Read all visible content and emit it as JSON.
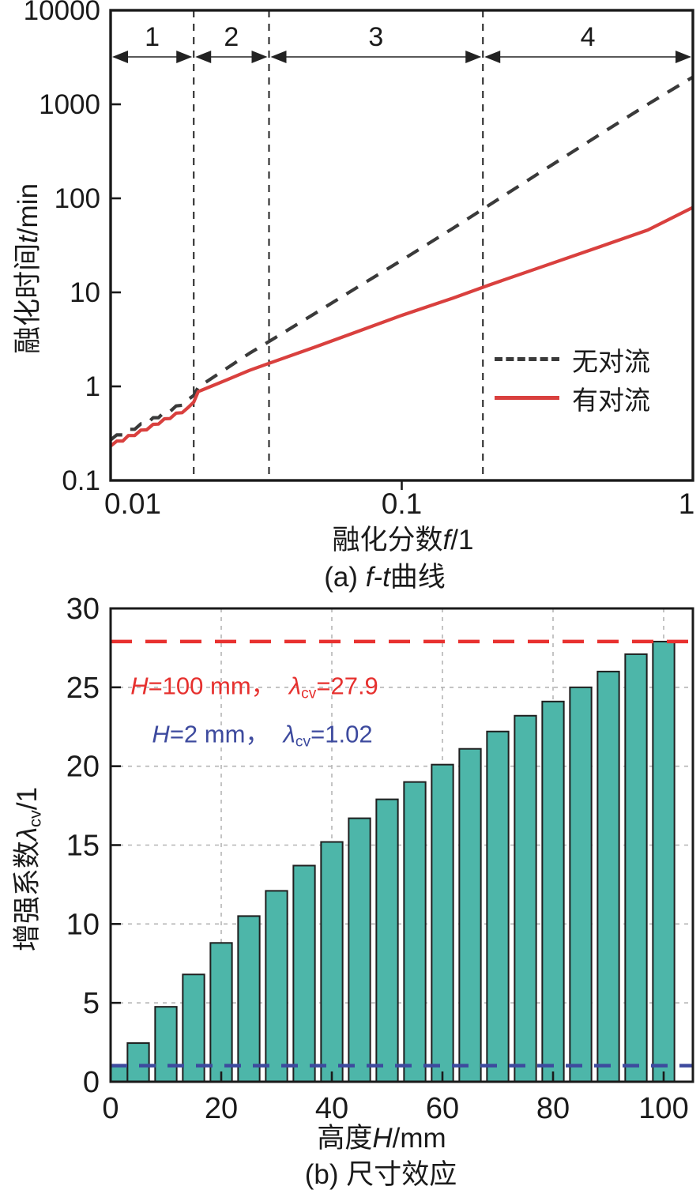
{
  "figure": {
    "panel_a": {
      "ylabel": {
        "cjk": "融化时间",
        "var": "t",
        "unit": "/min"
      },
      "xlabel": {
        "cjk": "融化分数",
        "var": "f",
        "unit": "/1"
      },
      "caption": {
        "prefix": "(a) ",
        "var": "f-t",
        "suffix": "曲线"
      },
      "legend": [
        {
          "key": "no-convection",
          "label": "无对流",
          "style": "dashed",
          "color": "#3a3a3a"
        },
        {
          "key": "with-convection",
          "label": "有对流",
          "style": "solid",
          "color": "#d9403e"
        }
      ]
    },
    "panel_b": {
      "ylabel": {
        "cjk": "增强系数",
        "var": "λ",
        "sub": "cv",
        "unit": "/1"
      },
      "xlabel": {
        "cjk": "高度",
        "var": "H",
        "unit": "/mm"
      },
      "caption": {
        "prefix": "(b) ",
        "suffix": "尺寸效应"
      },
      "annotations": [
        {
          "key": "h100",
          "color": "#e6302e",
          "var1": "H",
          "mid": "=100 mm，  ",
          "var2": "λ",
          "sub": "cv",
          "tail": "=27.9"
        },
        {
          "key": "h2",
          "color": "#3d4a9e",
          "var1": "H",
          "mid": "=2 mm，  ",
          "var2": "λ",
          "sub": "cv",
          "tail": "=1.02"
        }
      ]
    }
  },
  "chart_data": [
    {
      "type": "line",
      "title": "(a) f-t曲线",
      "xlabel": "融化分数f/1",
      "ylabel": "融化时间t/min",
      "xscale": "log",
      "yscale": "log",
      "xlim": [
        0.01,
        1
      ],
      "ylim": [
        0.1,
        10000
      ],
      "xticks": [
        "0.01",
        "0.1",
        "1"
      ],
      "yticks": [
        "0.1",
        "1",
        "10",
        "100",
        "1000",
        "10000"
      ],
      "grid": false,
      "legend_position": "lower right",
      "region_dividers": [
        0.0193,
        0.035,
        0.19
      ],
      "regions": [
        {
          "label": "1",
          "from": 0.01,
          "to": 0.0193
        },
        {
          "label": "2",
          "from": 0.0193,
          "to": 0.035
        },
        {
          "label": "3",
          "from": 0.035,
          "to": 0.19
        },
        {
          "label": "4",
          "from": 0.19,
          "to": 1.0
        }
      ],
      "series": [
        {
          "key": "no-convection",
          "name": "无对流",
          "color": "#3a3a3a",
          "style": "dashed",
          "points": [
            [
              0.01,
              0.27
            ],
            [
              0.0105,
              0.305
            ],
            [
              0.011,
              0.305
            ],
            [
              0.0115,
              0.35
            ],
            [
              0.0121,
              0.35
            ],
            [
              0.0127,
              0.4
            ],
            [
              0.0133,
              0.4
            ],
            [
              0.014,
              0.465
            ],
            [
              0.0146,
              0.465
            ],
            [
              0.0153,
              0.535
            ],
            [
              0.016,
              0.54
            ],
            [
              0.0168,
              0.62
            ],
            [
              0.0176,
              0.63
            ],
            [
              0.0185,
              0.73
            ],
            [
              0.0193,
              0.8
            ],
            [
              0.02,
              0.98
            ],
            [
              0.025,
              1.55
            ],
            [
              0.03,
              2.25
            ],
            [
              0.035,
              3.0
            ],
            [
              0.05,
              5.9
            ],
            [
              0.07,
              11.2
            ],
            [
              0.1,
              22
            ],
            [
              0.15,
              48
            ],
            [
              0.2,
              85
            ],
            [
              0.3,
              190
            ],
            [
              0.5,
              520
            ],
            [
              0.7,
              1000
            ],
            [
              1.0,
              1950
            ]
          ]
        },
        {
          "key": "with-convection",
          "name": "有对流",
          "color": "#d9403e",
          "style": "solid",
          "points": [
            [
              0.01,
              0.232
            ],
            [
              0.0105,
              0.262
            ],
            [
              0.011,
              0.262
            ],
            [
              0.0115,
              0.3
            ],
            [
              0.0121,
              0.3
            ],
            [
              0.0127,
              0.343
            ],
            [
              0.0133,
              0.345
            ],
            [
              0.014,
              0.395
            ],
            [
              0.0146,
              0.397
            ],
            [
              0.0153,
              0.452
            ],
            [
              0.016,
              0.455
            ],
            [
              0.0168,
              0.52
            ],
            [
              0.0176,
              0.525
            ],
            [
              0.0185,
              0.6
            ],
            [
              0.0193,
              0.68
            ],
            [
              0.02,
              0.88
            ],
            [
              0.025,
              1.17
            ],
            [
              0.03,
              1.48
            ],
            [
              0.035,
              1.76
            ],
            [
              0.05,
              2.6
            ],
            [
              0.07,
              3.8
            ],
            [
              0.1,
              5.7
            ],
            [
              0.15,
              8.7
            ],
            [
              0.2,
              12.0
            ],
            [
              0.3,
              18.5
            ],
            [
              0.5,
              32.0
            ],
            [
              0.7,
              46.0
            ],
            [
              1.0,
              80.0
            ]
          ]
        }
      ]
    },
    {
      "type": "bar",
      "title": "(b) 尺寸效应",
      "xlabel": "高度H/mm",
      "ylabel": "增强系数λcv/1",
      "xlim": [
        0,
        105.3
      ],
      "ylim": [
        0,
        30
      ],
      "xticks": [
        0,
        20,
        40,
        60,
        80,
        100
      ],
      "yticks": [
        0,
        5,
        10,
        15,
        20,
        25,
        30
      ],
      "grid": true,
      "bar_color": "#4db6a9",
      "bar_edge_color": "#1f1f1f",
      "categories_H_mm": [
        2,
        5,
        10,
        15,
        20,
        25,
        30,
        35,
        40,
        45,
        50,
        55,
        60,
        65,
        70,
        75,
        80,
        85,
        90,
        95,
        100
      ],
      "values_lambda_cv": [
        1.02,
        2.45,
        4.75,
        6.8,
        8.8,
        10.5,
        12.1,
        13.7,
        15.2,
        16.7,
        17.9,
        19.0,
        20.1,
        21.1,
        22.2,
        23.2,
        24.1,
        25.0,
        26.0,
        27.1,
        27.9
      ],
      "ref_lines": [
        {
          "key": "h100",
          "value": 27.9,
          "color": "#e8312f",
          "label": "H=100 mm，λcv=27.9"
        },
        {
          "key": "h2",
          "value": 1.02,
          "color": "#3d4a9e",
          "label": "H=2 mm，λcv=1.02"
        }
      ]
    }
  ]
}
